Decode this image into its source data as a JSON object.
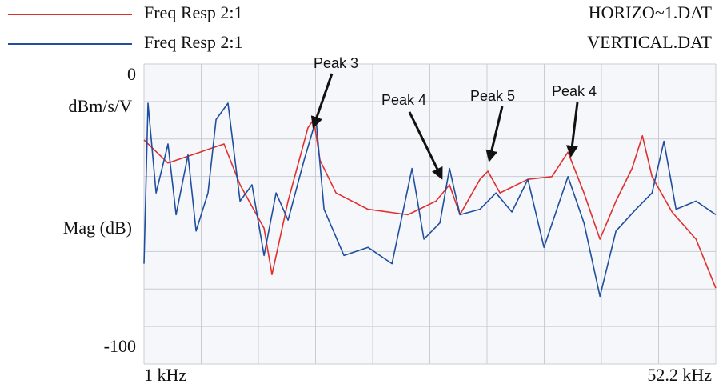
{
  "chart_data": {
    "type": "line",
    "y_labels": [
      "dBm/s/V",
      "Mag (dB)"
    ],
    "xlim": [
      1,
      52.2
    ],
    "xticks": [
      {
        "value": 1,
        "label": "1 kHz"
      },
      {
        "value": 52.2,
        "label": "52.2 kHz"
      }
    ],
    "ylim": [
      -100,
      0
    ],
    "yticks": [
      0,
      -100
    ],
    "grid": true,
    "annotations": [
      "Peak 3",
      "Peak 4",
      "Peak 5",
      "Peak 4"
    ],
    "series": [
      {
        "name": "Freq Resp 2:1",
        "file": "HORIZO~1.DAT",
        "color": "#e0302e",
        "x": [
          1,
          3.15,
          6.01,
          8.16,
          9.6,
          11.75,
          12.46,
          13.9,
          15.68,
          16.19,
          16.76,
          18.19,
          21.06,
          24.64,
          27.15,
          28.36,
          29.3,
          31.09,
          31.8,
          32.88,
          35.38,
          37.53,
          38.97,
          40.4,
          41.83,
          43.26,
          44.7,
          45.63,
          46.49,
          48.28,
          50.43,
          52.2
        ],
        "values": [
          -23.5,
          -32,
          -28,
          -25,
          -40,
          -56,
          -73,
          -46,
          -19,
          -16,
          -31,
          -43,
          -49,
          -51,
          -46,
          -40,
          -51,
          -38,
          -35,
          -43,
          -38,
          -37,
          -28,
          -43,
          -60,
          -46,
          -34,
          -22,
          -37,
          -50,
          -60,
          -78
        ]
      },
      {
        "name": "Freq Resp 2:1",
        "file": "VERTICAL.DAT",
        "color": "#1f4f9e",
        "x": [
          1,
          1.36,
          2.08,
          3.15,
          3.87,
          4.94,
          5.66,
          6.73,
          7.45,
          8.52,
          9.6,
          10.67,
          11.75,
          12.82,
          13.9,
          15.33,
          16.4,
          17.12,
          18.91,
          21.06,
          23.21,
          25.0,
          26.07,
          27.5,
          28.36,
          29.3,
          31.09,
          32.52,
          33.95,
          35.38,
          36.82,
          38.97,
          40.4,
          41.83,
          43.26,
          45.05,
          46.49,
          47.56,
          48.64,
          50.43,
          52.2
        ],
        "values": [
          -69,
          -10,
          -43,
          -25,
          -51,
          -29,
          -57,
          -43,
          -16,
          -10,
          -46,
          -40,
          -66,
          -43,
          -53,
          -31,
          -16,
          -49,
          -66,
          -63,
          -69,
          -34,
          -60,
          -54,
          -34,
          -51,
          -49,
          -43,
          -50,
          -38,
          -63,
          -37,
          -54,
          -81,
          -57,
          -49,
          -43,
          -24,
          -49,
          -46,
          -51
        ]
      }
    ]
  }
}
